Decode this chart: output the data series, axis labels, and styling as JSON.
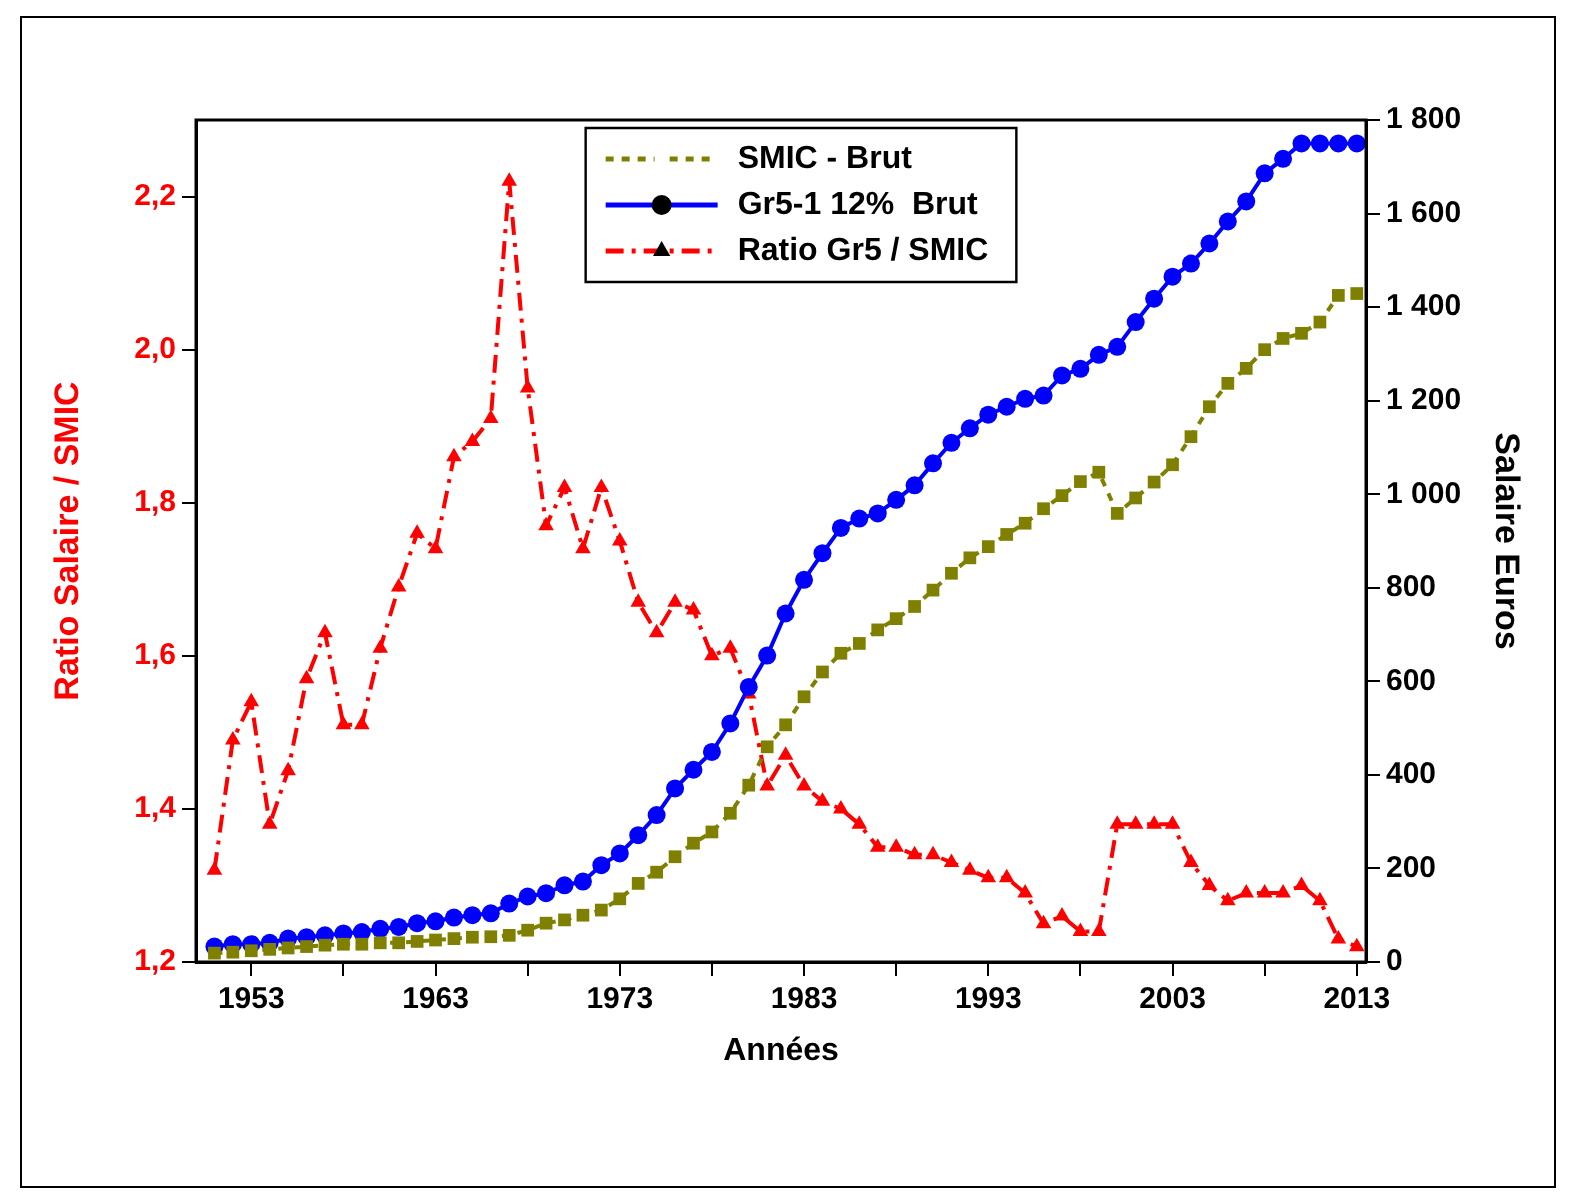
{
  "chart_data": {
    "type": "line",
    "xlabel": "Années",
    "ylabel": "Ratio Salaire / SMIC",
    "y2label": "Salaire Euros",
    "x": [
      1951,
      1952,
      1953,
      1954,
      1955,
      1956,
      1957,
      1958,
      1959,
      1960,
      1961,
      1962,
      1963,
      1964,
      1965,
      1966,
      1967,
      1968,
      1969,
      1970,
      1971,
      1972,
      1973,
      1974,
      1975,
      1976,
      1977,
      1978,
      1979,
      1980,
      1981,
      1982,
      1983,
      1984,
      1985,
      1986,
      1987,
      1988,
      1989,
      1990,
      1991,
      1992,
      1993,
      1994,
      1995,
      1996,
      1997,
      1998,
      1999,
      2000,
      2001,
      2002,
      2003,
      2004,
      2005,
      2006,
      2007,
      2008,
      2009,
      2010,
      2011,
      2012,
      2013
    ],
    "xlim": [
      1950,
      2013.5
    ],
    "xticks": [
      1953,
      {
        "value": 1958,
        "label": null
      },
      1963,
      {
        "value": 1968,
        "label": null
      },
      1973,
      {
        "value": 1978,
        "label": null
      },
      1983,
      {
        "value": 1988,
        "label": null
      },
      1993,
      {
        "value": 1998,
        "label": null
      },
      2003,
      {
        "value": 2008,
        "label": null
      },
      2013
    ],
    "ylim": [
      1.2,
      2.3
    ],
    "yticks": [
      {
        "value": 1.2,
        "label": "1,2"
      },
      {
        "value": 1.4,
        "label": "1,4"
      },
      {
        "value": 1.6,
        "label": "1,6"
      },
      {
        "value": 1.8,
        "label": "1,8"
      },
      {
        "value": 2.0,
        "label": "2,0"
      },
      {
        "value": 2.2,
        "label": "2,2"
      }
    ],
    "y2lim": [
      0,
      1800
    ],
    "y2ticks": [
      0,
      200,
      400,
      600,
      800,
      {
        "value": 1000,
        "label": "1 000"
      },
      {
        "value": 1200,
        "label": "1 200"
      },
      {
        "value": 1400,
        "label": "1 400"
      },
      {
        "value": 1600,
        "label": "1 600"
      },
      {
        "value": 1800,
        "label": "1 800"
      }
    ],
    "grid": false,
    "legend": "top",
    "series": [
      {
        "name": "SMIC - Brut",
        "color": "#808000",
        "axis": "y2",
        "marker": "square",
        "line_style": "dotted",
        "values": [
          19,
          21,
          24,
          27,
          30,
          33,
          36,
          38,
          38,
          41,
          41,
          44,
          47,
          50,
          53,
          54,
          57,
          68,
          83,
          90,
          100,
          111,
          135,
          168,
          192,
          225,
          254,
          278,
          318,
          378,
          460,
          507,
          567,
          620,
          660,
          681,
          710,
          734,
          760,
          795,
          831,
          864,
          888,
          914,
          938,
          969,
          997,
          1027,
          1047,
          959,
          992,
          1026,
          1063,
          1123,
          1187,
          1237,
          1269,
          1309,
          1333,
          1344,
          1368,
          1425,
          1429
        ]
      },
      {
        "name": "Gr5-1 12%  Brut",
        "color": "#0000ff",
        "axis": "y2",
        "marker": "circle",
        "line_style": "solid",
        "values": [
          33,
          38,
          38,
          41,
          50,
          53,
          57,
          61,
          64,
          71,
          75,
          83,
          87,
          95,
          100,
          104,
          125,
          140,
          147,
          164,
          172,
          207,
          232,
          271,
          314,
          371,
          411,
          449,
          510,
          588,
          655,
          745,
          817,
          874,
          928,
          948,
          959,
          988,
          1019,
          1066,
          1110,
          1141,
          1170,
          1187,
          1204,
          1211,
          1254,
          1268,
          1298,
          1315,
          1368,
          1418,
          1465,
          1493,
          1536,
          1583,
          1626,
          1686,
          1717,
          1750,
          1750,
          1750,
          1750
        ]
      },
      {
        "name": "Ratio Gr5 / SMIC",
        "color": "#ff0000",
        "axis": "y",
        "marker": "triangle",
        "line_style": "dashed",
        "values": [
          1.32,
          1.49,
          1.54,
          1.38,
          1.45,
          1.57,
          1.63,
          1.51,
          1.51,
          1.61,
          1.69,
          1.76,
          1.74,
          1.86,
          1.88,
          1.91,
          2.22,
          1.95,
          1.77,
          1.82,
          1.74,
          1.82,
          1.75,
          1.67,
          1.63,
          1.67,
          1.66,
          1.6,
          1.61,
          1.55,
          1.43,
          1.47,
          1.43,
          1.41,
          1.4,
          1.38,
          1.35,
          1.35,
          1.34,
          1.34,
          1.33,
          1.32,
          1.31,
          1.31,
          1.29,
          1.25,
          1.26,
          1.24,
          1.24,
          1.38,
          1.38,
          1.38,
          1.38,
          1.33,
          1.3,
          1.28,
          1.29,
          1.29,
          1.29,
          1.3,
          1.28,
          1.23,
          1.22
        ]
      }
    ]
  }
}
